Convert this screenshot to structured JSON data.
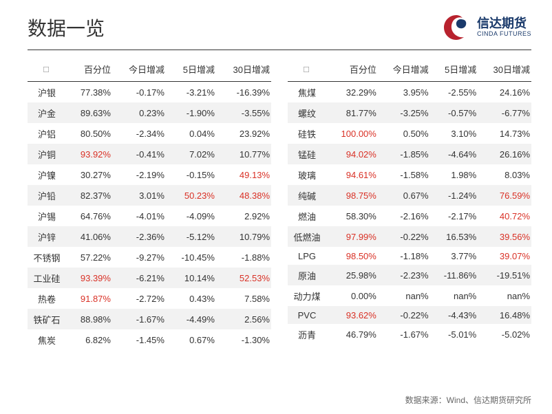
{
  "title": "数据一览",
  "logo": {
    "cn": "信达期货",
    "en": "CINDA FUTURES"
  },
  "footer": "数据来源：Wind、信达期货研究所",
  "columns": [
    "",
    "百分位",
    "今日增减",
    "5日增减",
    "30日增减"
  ],
  "colors": {
    "red": "#d93025",
    "text": "#333333",
    "alt_row": "#f2f2f2"
  },
  "red_threshold": 90,
  "red_change_threshold": 38,
  "left": [
    {
      "name": "沪银",
      "pct": "77.38%",
      "d1": "-0.17%",
      "d5": "-3.21%",
      "d30": "-16.39%"
    },
    {
      "name": "沪金",
      "pct": "89.63%",
      "d1": "0.23%",
      "d5": "-1.90%",
      "d30": "-3.55%"
    },
    {
      "name": "沪铝",
      "pct": "80.50%",
      "d1": "-2.34%",
      "d5": "0.04%",
      "d30": "23.92%"
    },
    {
      "name": "沪铜",
      "pct": "93.92%",
      "d1": "-0.41%",
      "d5": "7.02%",
      "d30": "10.77%",
      "pct_red": true
    },
    {
      "name": "沪镍",
      "pct": "30.27%",
      "d1": "-2.19%",
      "d5": "-0.15%",
      "d30": "49.13%",
      "d30_red": true
    },
    {
      "name": "沪铅",
      "pct": "82.37%",
      "d1": "3.01%",
      "d5": "50.23%",
      "d30": "48.38%",
      "d5_red": true,
      "d30_red": true
    },
    {
      "name": "沪锡",
      "pct": "64.76%",
      "d1": "-4.01%",
      "d5": "-4.09%",
      "d30": "2.92%"
    },
    {
      "name": "沪锌",
      "pct": "41.06%",
      "d1": "-2.36%",
      "d5": "-5.12%",
      "d30": "10.79%"
    },
    {
      "name": "不锈钢",
      "pct": "57.22%",
      "d1": "-9.27%",
      "d5": "-10.45%",
      "d30": "-1.88%"
    },
    {
      "name": "工业硅",
      "pct": "93.39%",
      "d1": "-6.21%",
      "d5": "10.14%",
      "d30": "52.53%",
      "pct_red": true,
      "d30_red": true
    },
    {
      "name": "热卷",
      "pct": "91.87%",
      "d1": "-2.72%",
      "d5": "0.43%",
      "d30": "7.58%",
      "pct_red": true
    },
    {
      "name": "铁矿石",
      "pct": "88.98%",
      "d1": "-1.67%",
      "d5": "-4.49%",
      "d30": "2.56%"
    },
    {
      "name": "焦炭",
      "pct": "6.82%",
      "d1": "-1.45%",
      "d5": "0.67%",
      "d30": "-1.30%"
    }
  ],
  "right": [
    {
      "name": "焦煤",
      "pct": "32.29%",
      "d1": "3.95%",
      "d5": "-2.55%",
      "d30": "24.16%"
    },
    {
      "name": "螺纹",
      "pct": "81.77%",
      "d1": "-3.25%",
      "d5": "-0.57%",
      "d30": "-6.77%"
    },
    {
      "name": "硅铁",
      "pct": "100.00%",
      "d1": "0.50%",
      "d5": "3.10%",
      "d30": "14.73%",
      "pct_red": true
    },
    {
      "name": "锰硅",
      "pct": "94.02%",
      "d1": "-1.85%",
      "d5": "-4.64%",
      "d30": "26.16%",
      "pct_red": true
    },
    {
      "name": "玻璃",
      "pct": "94.61%",
      "d1": "-1.58%",
      "d5": "1.98%",
      "d30": "8.03%",
      "pct_red": true
    },
    {
      "name": "纯碱",
      "pct": "98.75%",
      "d1": "0.67%",
      "d5": "-1.24%",
      "d30": "76.59%",
      "pct_red": true,
      "d30_red": true
    },
    {
      "name": "燃油",
      "pct": "58.30%",
      "d1": "-2.16%",
      "d5": "-2.17%",
      "d30": "40.72%",
      "d30_red": true
    },
    {
      "name": "低燃油",
      "pct": "97.99%",
      "d1": "-0.22%",
      "d5": "16.53%",
      "d30": "39.56%",
      "pct_red": true,
      "d30_red": true
    },
    {
      "name": "LPG",
      "pct": "98.50%",
      "d1": "-1.18%",
      "d5": "3.77%",
      "d30": "39.07%",
      "pct_red": true,
      "d30_red": true
    },
    {
      "name": "原油",
      "pct": "25.98%",
      "d1": "-2.23%",
      "d5": "-11.86%",
      "d30": "-19.51%"
    },
    {
      "name": "动力煤",
      "pct": "0.00%",
      "d1": "nan%",
      "d5": "nan%",
      "d30": "nan%"
    },
    {
      "name": "PVC",
      "pct": "93.62%",
      "d1": "-0.22%",
      "d5": "-4.43%",
      "d30": "16.48%",
      "pct_red": true
    },
    {
      "name": "沥青",
      "pct": "46.79%",
      "d1": "-1.67%",
      "d5": "-5.01%",
      "d30": "-5.02%"
    }
  ]
}
